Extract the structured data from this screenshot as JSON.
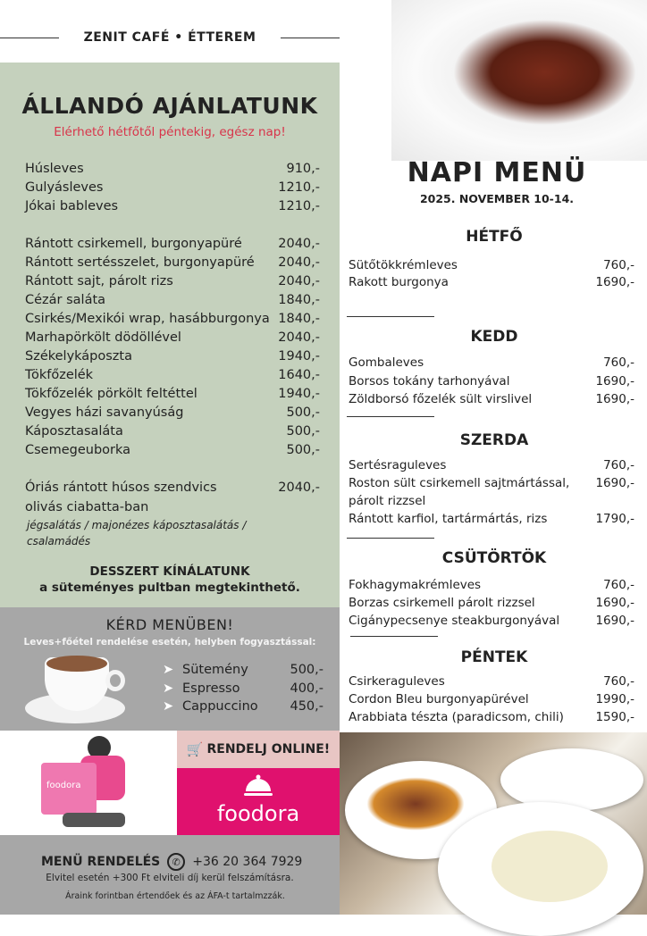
{
  "header": {
    "brand": "ZENIT CAFÉ • ÉTTEREM"
  },
  "allando": {
    "title": "ÁLLANDÓ AJÁNLATUNK",
    "subtitle": "Elérhető hétfőtől péntekig, egész nap!",
    "soups": [
      {
        "name": "Húsleves",
        "price": "910,-"
      },
      {
        "name": "Gulyásleves",
        "price": "1210,-"
      },
      {
        "name": "Jókai bableves",
        "price": "1210,-"
      }
    ],
    "mains": [
      {
        "name": "Rántott csirkemell, burgonyapüré",
        "price": "2040,-"
      },
      {
        "name": "Rántott sertésszelet, burgonyapüré",
        "price": "2040,-"
      },
      {
        "name": "Rántott sajt, párolt rizs",
        "price": "2040,-"
      },
      {
        "name": "Cézár saláta",
        "price": "1840,-"
      },
      {
        "name": "Csirkés/Mexikói wrap, hasábburgonya",
        "price": "1840,-"
      },
      {
        "name": "Marhapörkölt dödöllével",
        "price": "2040,-"
      },
      {
        "name": "Székelykáposzta",
        "price": "1940,-"
      },
      {
        "name": "Tökfőzelék",
        "price": "1640,-"
      },
      {
        "name": "Tökfőzelék pörkölt feltéttel",
        "price": "1940,-"
      },
      {
        "name": "Vegyes házi savanyúság",
        "price": "500,-"
      },
      {
        "name": "Káposztasaláta",
        "price": "500,-"
      },
      {
        "name": "Csemegeuborka",
        "price": "500,-"
      }
    ],
    "sandwich": {
      "name": "Óriás rántott húsos szendvics",
      "name2": "olivás ciabatta-ban",
      "price": "2040,-",
      "note": "jégsalátás / majonézes káposztasalátás / csalamádés"
    },
    "dessert_title": "DESSZERT KÍNÁLATUNK",
    "dessert_sub": "a süteményes pultban megtekinthető."
  },
  "menuben": {
    "title": "KÉRD MENÜBEN!",
    "sub": "Leves+főétel rendelése esetén, helyben fogyasztással:",
    "items": [
      {
        "name": "Sütemény",
        "price": "500,-"
      },
      {
        "name": "Espresso",
        "price": "400,-"
      },
      {
        "name": "Cappuccino",
        "price": "450,-"
      }
    ]
  },
  "online": {
    "label": "RENDELJ ONLINE!",
    "logo_text": "foodora",
    "bag_text": "foodora",
    "brand_color": "#e0116e"
  },
  "footer": {
    "order_label": "MENÜ RENDELÉS",
    "phone": "+36 20 364 7929",
    "takeaway": "Elvitel esetén +300 Ft elviteli díj kerül felszámításra.",
    "vat": "Áraink forintban értendőek és az ÁFA-t tartalmzzák."
  },
  "napi": {
    "title": "NAPI MENÜ",
    "date": "2025. NOVEMBER 10-14.",
    "days": [
      {
        "name": "HÉTFŐ",
        "items": [
          {
            "name": "Sütőtökkrémleves",
            "price": "760,-"
          },
          {
            "name": "Rakott burgonya",
            "price": "1690,-"
          }
        ]
      },
      {
        "name": "KEDD",
        "items": [
          {
            "name": "Gombaleves",
            "price": "760,-"
          },
          {
            "name": "Borsos tokány tarhonyával",
            "price": "1690,-"
          },
          {
            "name": "Zöldborsó főzelék sült virslivel",
            "price": "1690,-"
          }
        ]
      },
      {
        "name": "SZERDA",
        "items": [
          {
            "name": "Sertésraguleves",
            "price": "760,-"
          },
          {
            "name": "Roston sült csirkemell sajtmártással,",
            "price": "1690,-"
          },
          {
            "name": "párolt rizzsel",
            "price": ""
          },
          {
            "name": "Rántott karfiol, tartármártás, rizs",
            "price": "1790,-"
          }
        ]
      },
      {
        "name": "CSÜTÖRTÖK",
        "items": [
          {
            "name": "Fokhagymakrémleves",
            "price": "760,-"
          },
          {
            "name": "Borzas csirkemell párolt rizzsel",
            "price": "1690,-"
          },
          {
            "name": "Cigánypecsenye steakburgonyával",
            "price": "1690,-"
          }
        ]
      },
      {
        "name": "PÉNTEK",
        "items": [
          {
            "name": "Csirkeraguleves",
            "price": "760,-"
          },
          {
            "name": "Cordon Bleu burgonyapürével",
            "price": "1990,-"
          },
          {
            "name": "Arabbiata tészta (paradicsom, chili)",
            "price": "1590,-"
          }
        ]
      }
    ]
  }
}
